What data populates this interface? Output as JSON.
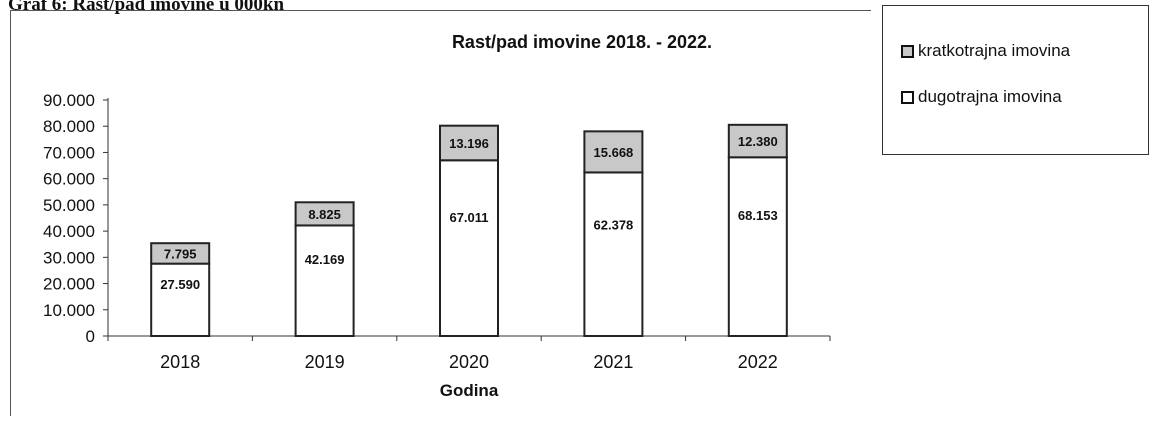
{
  "caption": "Graf 6: Rast/pad imovine u 000kn",
  "chart_data": {
    "type": "bar",
    "stacked": true,
    "title": "Rast/pad imovine 2018. - 2022.",
    "xlabel": "Godina",
    "ylabel": "",
    "categories": [
      "2018",
      "2019",
      "2020",
      "2021",
      "2022"
    ],
    "ylim": [
      0,
      90000
    ],
    "yticks": [
      "0",
      "10.000",
      "20.000",
      "30.000",
      "40.000",
      "50.000",
      "60.000",
      "70.000",
      "80.000",
      "90.000"
    ],
    "grid": false,
    "legend_position": "right",
    "series": [
      {
        "name": "dugotrajna imovina",
        "values": [
          27590,
          42169,
          67011,
          62378,
          68153
        ],
        "labels": [
          "27.590",
          "42.169",
          "67.011",
          "62.378",
          "68.153"
        ],
        "color": "#ffffff"
      },
      {
        "name": "kratkotrajna imovina",
        "values": [
          7795,
          8825,
          13196,
          15668,
          12380
        ],
        "labels": [
          "7.795",
          "8.825",
          "13.196",
          "15.668",
          "12.380"
        ],
        "color": "#c8c8c8"
      }
    ]
  },
  "legend": {
    "items": [
      {
        "label": "kratkotrajna imovina",
        "color": "#c8c8c8"
      },
      {
        "label": "dugotrajna imovina",
        "color": "#ffffff"
      }
    ]
  }
}
